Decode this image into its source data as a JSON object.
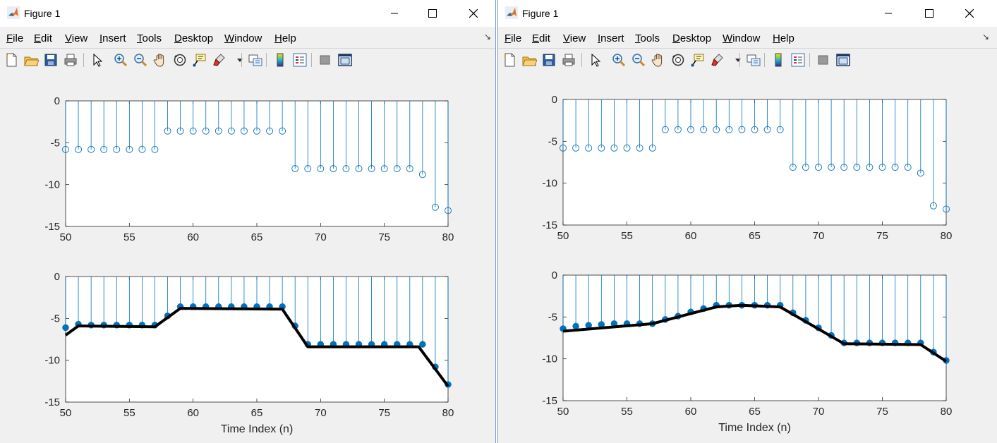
{
  "windows": [
    {
      "id": "left",
      "title": "Figure 1",
      "menu": [
        "File",
        "Edit",
        "View",
        "Insert",
        "Tools",
        "Desktop",
        "Window",
        "Help"
      ],
      "toolbar": [
        "new-figure-icon",
        "open-file-icon",
        "save-icon",
        "print-icon",
        "select-pointer-icon",
        "zoom-in-icon",
        "zoom-out-icon",
        "pan-hand-icon",
        "rotate-3d-icon",
        "data-cursor-icon",
        "brush-icon",
        "brush-dropdown-icon",
        "link-plot-icon",
        "colorbar-icon",
        "legend-icon",
        "hide-plot-tools-icon",
        "show-plot-tools-icon"
      ]
    },
    {
      "id": "right",
      "title": "Figure 1",
      "menu": [
        "File",
        "Edit",
        "View",
        "Insert",
        "Tools",
        "Desktop",
        "Window",
        "Help"
      ],
      "toolbar": [
        "new-figure-icon",
        "open-file-icon",
        "save-icon",
        "print-icon",
        "select-pointer-icon",
        "zoom-in-icon",
        "zoom-out-icon",
        "pan-hand-icon",
        "rotate-3d-icon",
        "data-cursor-icon",
        "brush-icon",
        "brush-dropdown-icon",
        "link-plot-icon",
        "colorbar-icon",
        "legend-icon",
        "hide-plot-tools-icon",
        "show-plot-tools-icon"
      ]
    }
  ],
  "colors": {
    "stem": "#0072BD",
    "fit_line": "#000000",
    "axes_bg": "#ffffff",
    "figure_bg": "#f0f0f0"
  },
  "chart_data": [
    {
      "type": "stem",
      "window": "left",
      "panel": "top",
      "marker": "open-circle",
      "xlim": [
        50,
        80
      ],
      "ylim": [
        -15,
        0
      ],
      "xticks": [
        50,
        55,
        60,
        65,
        70,
        75,
        80
      ],
      "yticks": [
        0,
        -5,
        -10,
        -15
      ],
      "xlabel": "",
      "x": [
        50,
        51,
        52,
        53,
        54,
        55,
        56,
        57,
        58,
        59,
        60,
        61,
        62,
        63,
        64,
        65,
        66,
        67,
        68,
        69,
        70,
        71,
        72,
        73,
        74,
        75,
        76,
        77,
        78,
        79,
        80
      ],
      "y": [
        -5.8,
        -5.8,
        -5.8,
        -5.8,
        -5.8,
        -5.8,
        -5.8,
        -5.8,
        -3.6,
        -3.6,
        -3.6,
        -3.6,
        -3.6,
        -3.6,
        -3.6,
        -3.6,
        -3.6,
        -3.6,
        -8.1,
        -8.1,
        -8.1,
        -8.1,
        -8.1,
        -8.1,
        -8.1,
        -8.1,
        -8.1,
        -8.1,
        -8.8,
        -12.7,
        -13.1
      ]
    },
    {
      "type": "stem",
      "window": "left",
      "panel": "bottom",
      "marker": "filled-circle",
      "xlim": [
        50,
        80
      ],
      "ylim": [
        -15,
        0
      ],
      "xticks": [
        50,
        55,
        60,
        65,
        70,
        75,
        80
      ],
      "yticks": [
        0,
        -5,
        -10,
        -15
      ],
      "xlabel": "Time Index (n)",
      "x": [
        50,
        51,
        52,
        53,
        54,
        55,
        56,
        57,
        58,
        59,
        60,
        61,
        62,
        63,
        64,
        65,
        66,
        67,
        68,
        69,
        70,
        71,
        72,
        73,
        74,
        75,
        76,
        77,
        78,
        79,
        80
      ],
      "y": [
        -6.1,
        -5.7,
        -5.8,
        -5.8,
        -5.8,
        -5.8,
        -5.8,
        -5.8,
        -4.7,
        -3.6,
        -3.6,
        -3.6,
        -3.6,
        -3.6,
        -3.6,
        -3.6,
        -3.6,
        -3.6,
        -5.9,
        -8.1,
        -8.1,
        -8.1,
        -8.1,
        -8.1,
        -8.1,
        -8.1,
        -8.1,
        -8.1,
        -8.1,
        -10.8,
        -12.9
      ],
      "fit_line": {
        "x": [
          50,
          51,
          57,
          59,
          67,
          69,
          77.7,
          80
        ],
        "y": [
          -7.0,
          -5.9,
          -6.0,
          -3.8,
          -3.9,
          -8.4,
          -8.4,
          -13.1
        ]
      }
    },
    {
      "type": "stem",
      "window": "right",
      "panel": "top",
      "marker": "open-circle",
      "xlim": [
        50,
        80
      ],
      "ylim": [
        -15,
        0
      ],
      "xticks": [
        50,
        55,
        60,
        65,
        70,
        75,
        80
      ],
      "yticks": [
        0,
        -5,
        -10,
        -15
      ],
      "xlabel": "",
      "x": [
        50,
        51,
        52,
        53,
        54,
        55,
        56,
        57,
        58,
        59,
        60,
        61,
        62,
        63,
        64,
        65,
        66,
        67,
        68,
        69,
        70,
        71,
        72,
        73,
        74,
        75,
        76,
        77,
        78,
        79,
        80
      ],
      "y": [
        -5.8,
        -5.8,
        -5.8,
        -5.8,
        -5.8,
        -5.8,
        -5.8,
        -5.8,
        -3.6,
        -3.6,
        -3.6,
        -3.6,
        -3.6,
        -3.6,
        -3.6,
        -3.6,
        -3.6,
        -3.6,
        -8.1,
        -8.1,
        -8.1,
        -8.1,
        -8.1,
        -8.1,
        -8.1,
        -8.1,
        -8.1,
        -8.1,
        -8.8,
        -12.7,
        -13.1
      ]
    },
    {
      "type": "stem",
      "window": "right",
      "panel": "bottom",
      "marker": "filled-circle",
      "xlim": [
        50,
        80
      ],
      "ylim": [
        -15,
        0
      ],
      "xticks": [
        50,
        55,
        60,
        65,
        70,
        75,
        80
      ],
      "yticks": [
        0,
        -5,
        -10,
        -15
      ],
      "xlabel": "Time Index (n)",
      "x": [
        50,
        51,
        52,
        53,
        54,
        55,
        56,
        57,
        58,
        59,
        60,
        61,
        62,
        63,
        64,
        65,
        66,
        67,
        68,
        69,
        70,
        71,
        72,
        73,
        74,
        75,
        76,
        77,
        78,
        79,
        80
      ],
      "y": [
        -6.4,
        -6.1,
        -6.0,
        -5.9,
        -5.8,
        -5.8,
        -5.8,
        -5.8,
        -5.3,
        -4.9,
        -4.4,
        -4.0,
        -3.6,
        -3.6,
        -3.6,
        -3.6,
        -3.6,
        -3.6,
        -4.5,
        -5.4,
        -6.3,
        -7.2,
        -8.1,
        -8.1,
        -8.1,
        -8.1,
        -8.1,
        -8.1,
        -8.1,
        -9.2,
        -10.2
      ],
      "fit_line": {
        "x": [
          50,
          57,
          62,
          64,
          67,
          72,
          78,
          80
        ],
        "y": [
          -6.7,
          -5.8,
          -3.8,
          -3.6,
          -3.8,
          -8.2,
          -8.3,
          -10.3
        ]
      }
    }
  ]
}
